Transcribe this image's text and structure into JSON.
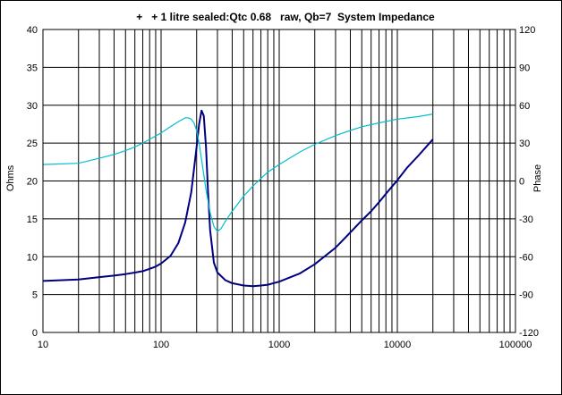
{
  "chart_data": {
    "type": "line",
    "title": "+   + 1 litre sealed:Qtc 0.68   raw, Qb=7  System Impedance",
    "xlabel": "",
    "ylabel": "Ohms",
    "y2label": "Phase",
    "x_scale": "log",
    "xlim": [
      10,
      100000
    ],
    "ylim": [
      0,
      40
    ],
    "y2lim": [
      -120,
      120
    ],
    "x_ticks": [
      "10",
      "100",
      "1000",
      "10000",
      "100000"
    ],
    "y_ticks": [
      "0",
      "5",
      "10",
      "15",
      "20",
      "25",
      "30",
      "35",
      "40"
    ],
    "y2_ticks": [
      "-120",
      "-90",
      "-60",
      "-30",
      "0",
      "30",
      "60",
      "90",
      "120"
    ],
    "grid": true,
    "series": [
      {
        "role": "impedance",
        "axis": "left",
        "color": "#000080",
        "x": [
          10,
          20,
          30,
          40,
          50,
          60,
          70,
          80,
          90,
          100,
          120,
          140,
          160,
          180,
          200,
          210,
          220,
          230,
          240,
          250,
          260,
          280,
          300,
          350,
          400,
          500,
          600,
          700,
          800,
          1000,
          1500,
          2000,
          3000,
          4000,
          5000,
          6000,
          7000,
          8000,
          10000,
          12000,
          15000,
          20000
        ],
        "values": [
          6.8,
          7.0,
          7.3,
          7.5,
          7.7,
          7.9,
          8.1,
          8.4,
          8.7,
          9.1,
          10.1,
          11.8,
          14.5,
          18.5,
          24.5,
          27.5,
          29.3,
          28.6,
          24.5,
          18.5,
          13.5,
          9.2,
          7.9,
          6.9,
          6.5,
          6.2,
          6.1,
          6.2,
          6.3,
          6.7,
          7.8,
          9.0,
          11.2,
          13.2,
          14.8,
          16.0,
          17.2,
          18.3,
          20.1,
          21.7,
          23.3,
          25.5
        ]
      },
      {
        "role": "phase",
        "axis": "right",
        "color": "#00BFD0",
        "x": [
          10,
          20,
          30,
          40,
          50,
          60,
          70,
          80,
          100,
          120,
          140,
          160,
          170,
          180,
          190,
          200,
          210,
          220,
          240,
          260,
          280,
          300,
          320,
          350,
          400,
          500,
          600,
          700,
          800,
          1000,
          1500,
          2000,
          3000,
          4000,
          5000,
          7000,
          10000,
          15000,
          20000
        ],
        "values": [
          13,
          14,
          18,
          21,
          24,
          27,
          30,
          33,
          38,
          43,
          47,
          50,
          50,
          49,
          46,
          40,
          30,
          17,
          -7,
          -25,
          -36,
          -40,
          -38,
          -32,
          -24,
          -12,
          -4,
          2,
          7,
          13,
          23,
          29,
          36,
          40,
          43,
          46,
          49,
          51,
          53
        ]
      }
    ]
  }
}
